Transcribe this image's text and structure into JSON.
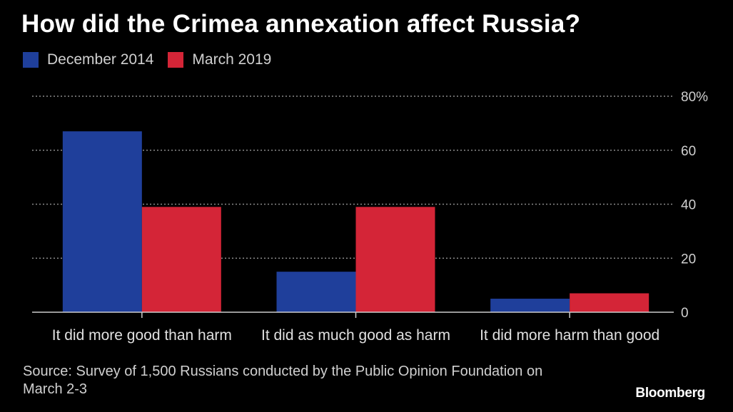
{
  "chart_data": {
    "type": "bar",
    "title": "How did the Crimea annexation affect Russia?",
    "categories": [
      "It did more good than harm",
      "It did as much good as harm",
      "It did more harm than good"
    ],
    "series": [
      {
        "name": "December 2014",
        "color": "#1f3f9b",
        "values": [
          67,
          15,
          5
        ]
      },
      {
        "name": "March 2019",
        "color": "#d42537",
        "values": [
          39,
          39,
          7
        ]
      }
    ],
    "ylim": [
      0,
      80
    ],
    "yticks": [
      0,
      20,
      40,
      60,
      80
    ],
    "ytick_labels": [
      "0",
      "20",
      "40",
      "60",
      "80%"
    ],
    "grid": true,
    "legend": "top-left",
    "xlabel": "",
    "ylabel": ""
  },
  "source": "Source: Survey of 1,500 Russians conducted by the Public Opinion Foundation on March 2-3",
  "brand": "Bloomberg"
}
